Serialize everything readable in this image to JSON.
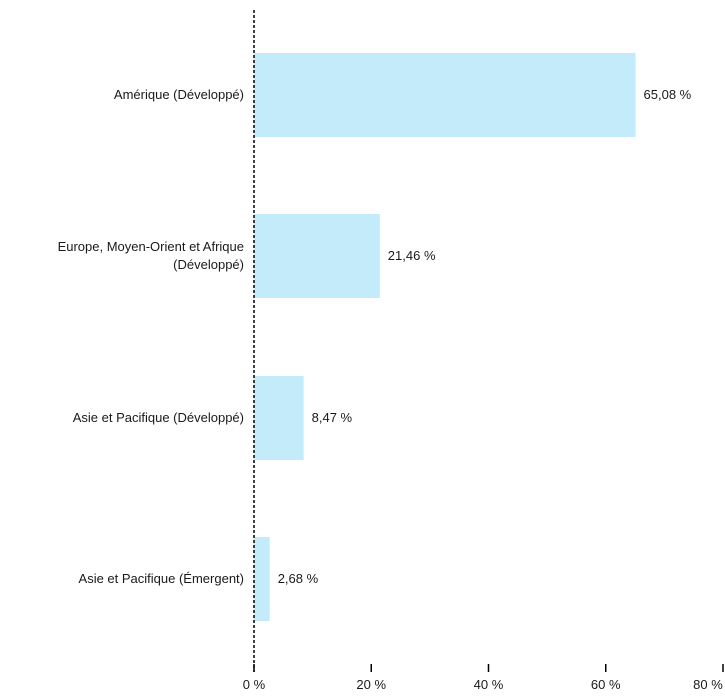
{
  "chart_data": {
    "type": "bar",
    "orientation": "horizontal",
    "categories": [
      "Amérique (Développé)",
      "Europe, Moyen-Orient et Afrique (Développé)",
      "Asie et Pacifique (Développé)",
      "Asie et Pacifique (Émergent)"
    ],
    "values": [
      65.08,
      21.46,
      8.47,
      2.68
    ],
    "value_labels": [
      "65,08 %",
      "21,46 %",
      "8,47 %",
      "2,68 %"
    ],
    "xlim": [
      0,
      80
    ],
    "x_ticks": [
      0,
      20,
      40,
      60,
      80
    ],
    "x_tick_labels": [
      "0 %",
      "20 %",
      "40 %",
      "60 %",
      "80 %"
    ],
    "title": "",
    "xlabel": "",
    "ylabel": "",
    "bar_color": "#c3ebfa",
    "axis_color": "#000000",
    "grid": false
  }
}
